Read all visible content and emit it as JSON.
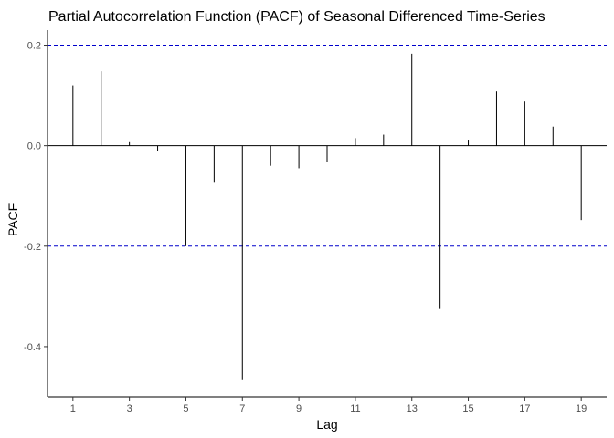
{
  "chart_data": {
    "type": "bar",
    "title": "Partial Autocorrelation Function (PACF) of Seasonal Differenced Time-Series",
    "xlabel": "Lag",
    "ylabel": "PACF",
    "lags": [
      1,
      2,
      3,
      4,
      5,
      6,
      7,
      8,
      9,
      10,
      11,
      12,
      13,
      14,
      15,
      16,
      17,
      18,
      19
    ],
    "values": [
      0.12,
      0.148,
      0.007,
      -0.01,
      -0.2,
      -0.072,
      -0.465,
      -0.04,
      -0.045,
      -0.033,
      0.015,
      0.022,
      0.183,
      -0.325,
      0.012,
      0.108,
      0.088,
      0.038,
      -0.148
    ],
    "confidence_bounds": [
      0.2,
      -0.2
    ],
    "xlim": [
      0.1,
      19.9
    ],
    "ylim": [
      -0.5,
      0.23
    ],
    "x_ticks": [
      1,
      3,
      5,
      7,
      9,
      11,
      13,
      15,
      17,
      19
    ],
    "y_ticks": [
      0.2,
      0.0,
      -0.2,
      -0.4
    ],
    "y_tick_labels": [
      "0.2",
      "0.0",
      "-0.2",
      "-0.4"
    ],
    "grid": false,
    "colors": {
      "bars": "#000000",
      "bounds": "#0000cc",
      "axis": "#000000"
    }
  }
}
